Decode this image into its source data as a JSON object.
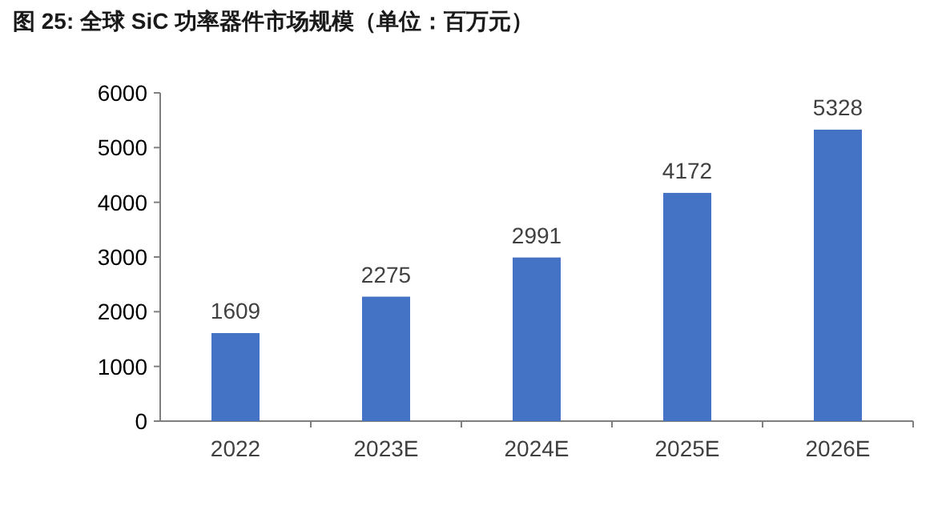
{
  "chart_data": {
    "type": "bar",
    "title": "图 25:  全球 SiC 功率器件市场规模（单位：百万元）",
    "categories": [
      "2022",
      "2023E",
      "2024E",
      "2025E",
      "2026E"
    ],
    "values": [
      1609,
      2275,
      2991,
      4172,
      5328
    ],
    "color": "#4472c4",
    "ylim": [
      0,
      6000
    ],
    "yticks": [
      0,
      1000,
      2000,
      3000,
      4000,
      5000,
      6000
    ],
    "data_labels": true
  }
}
